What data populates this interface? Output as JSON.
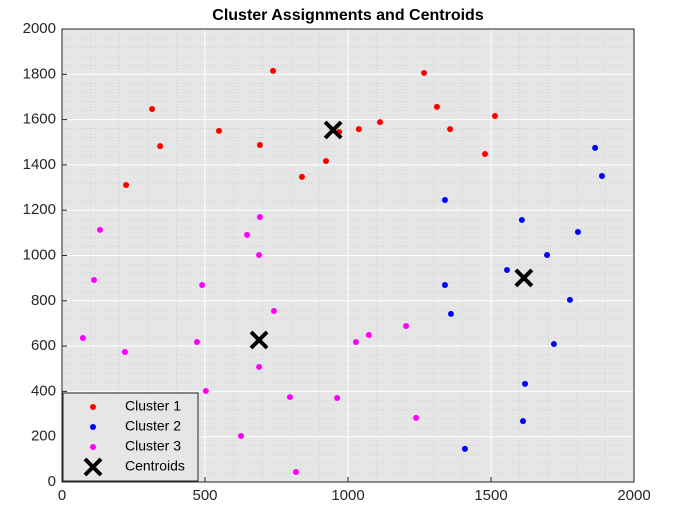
{
  "chart_data": {
    "type": "scatter",
    "title": "Cluster Assignments and Centroids",
    "xlim": [
      0,
      2000
    ],
    "xticks": [
      0,
      500,
      1000,
      1500,
      2000
    ],
    "ylim": [
      0,
      2000
    ],
    "yticks": [
      0,
      200,
      400,
      600,
      800,
      1000,
      1200,
      1400,
      1600,
      1800,
      2000
    ],
    "grid": true,
    "minor_grid": true,
    "legend": "southwest",
    "series": [
      {
        "name": "Cluster 1",
        "color": "#ff0000",
        "marker": "dot",
        "x": [
          738,
          1266,
          315,
          1311,
          1514,
          549,
          1112,
          1038,
          969,
          1357,
          343,
          692,
          1479,
          923,
          839,
          224
        ],
        "values": [
          1815,
          1806,
          1647,
          1656,
          1616,
          1550,
          1589,
          1558,
          1545,
          1558,
          1483,
          1488,
          1448,
          1417,
          1347,
          1311
        ]
      },
      {
        "name": "Cluster 2",
        "color": "#0000ff",
        "marker": "dot",
        "x": [
          1864,
          1888,
          1339,
          1608,
          1804,
          1696,
          1556,
          1339,
          1776,
          1360,
          1720,
          1619,
          1612,
          1409
        ],
        "values": [
          1475,
          1351,
          1245,
          1157,
          1104,
          1002,
          936,
          870,
          804,
          742,
          609,
          433,
          269,
          146
        ]
      },
      {
        "name": "Cluster 3",
        "color": "#ff00ff",
        "marker": "dot",
        "x": [
          133,
          692,
          647,
          689,
          112,
          490,
          741,
          73,
          472,
          1203,
          1073,
          1028,
          220,
          689,
          503,
          797,
          962,
          1238,
          626,
          818
        ],
        "values": [
          1113,
          1170,
          1091,
          1002,
          892,
          870,
          755,
          636,
          618,
          689,
          649,
          618,
          574,
          508,
          402,
          375,
          371,
          283,
          203,
          44
        ]
      },
      {
        "name": "Centroids",
        "color": "#000000",
        "marker": "x",
        "x": [
          948,
          689,
          1615
        ],
        "values": [
          1554,
          627,
          901
        ]
      }
    ]
  }
}
